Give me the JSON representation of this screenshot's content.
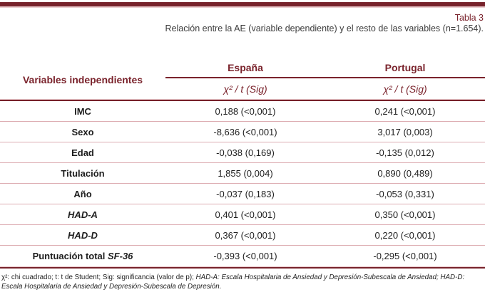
{
  "title": {
    "table_number": "Tabla 3",
    "caption": "Relación entre la AE (variable dependiente) y el resto de las variables (n=1.654)."
  },
  "colors": {
    "maroon": "#77222b",
    "pink_rule": "#ddadb2",
    "text": "#1f1f1f"
  },
  "table": {
    "left_header": "Variables independientes",
    "countries": {
      "spain": "España",
      "portugal": "Portugal"
    },
    "stat_header": "χ² / t (Sig)",
    "rows": [
      {
        "label": "IMC",
        "label_em": "",
        "spain": "0,188 (<0,001)",
        "portugal": "0,241 (<0,001)"
      },
      {
        "label": "Sexo",
        "label_em": "",
        "spain": "-8,636 (<0,001)",
        "portugal": "3,017 (0,003)"
      },
      {
        "label": "Edad",
        "label_em": "",
        "spain": "-0,038 (0,169)",
        "portugal": "-0,135 (0,012)"
      },
      {
        "label": "Titulación",
        "label_em": "",
        "spain": "1,855 (0,004)",
        "portugal": "0,890 (0,489)"
      },
      {
        "label": "Año",
        "label_em": "",
        "spain": "-0,037 (0,183)",
        "portugal": "-0,053 (0,331)"
      },
      {
        "label": "",
        "label_em": "HAD-A",
        "spain": "0,401 (<0,001)",
        "portugal": "0,350 (<0,001)"
      },
      {
        "label": "",
        "label_em": "HAD-D",
        "spain": "0,367 (<0,001)",
        "portugal": "0,220 (<0,001)"
      },
      {
        "label": "Puntuación total ",
        "label_em": "SF-36",
        "spain": "-0,393 (<0,001)",
        "portugal": "-0,295 (<0,001)"
      }
    ]
  },
  "footnote": {
    "regular": "χ²: chi cuadrado; t: t de Student; Sig: significancia (valor de p); ",
    "italic": "HAD-A: Escala Hospitalaria de Ansiedad y Depresión-Subescala de Ansiedad; HAD-D: Escala Hospitalaria de Ansiedad y Depresión-Subescala de Depresión."
  }
}
